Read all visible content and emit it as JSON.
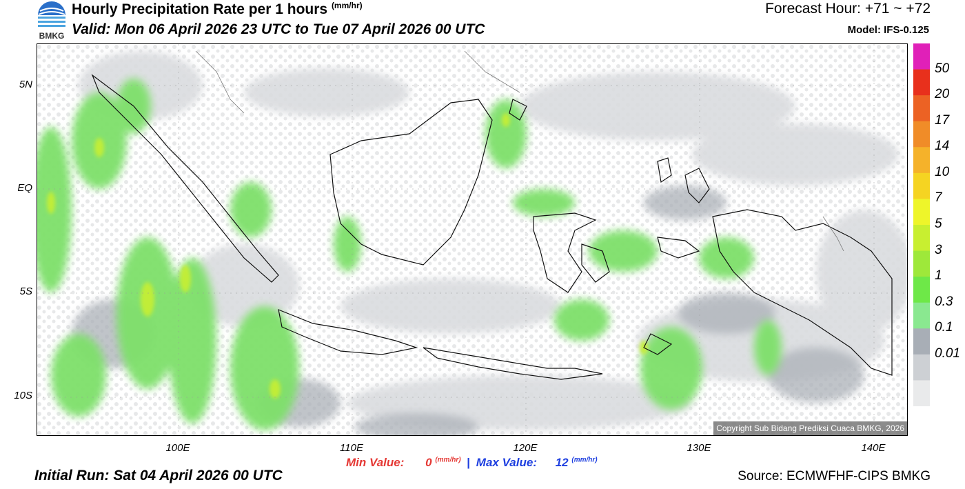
{
  "header": {
    "title": "Hourly Precipitation Rate per 1 hours",
    "title_unit": "(mm/hr)",
    "valid": "Valid: Mon 06 April 2026 23 UTC to Tue 07 April 2026 00 UTC",
    "forecast_hour": "Forecast Hour: +71 ~ +72",
    "model": "Model: IFS-0.125",
    "logo_text": "BMKG"
  },
  "axes": {
    "y_labels": [
      "5N",
      "EQ",
      "5S",
      "10S"
    ],
    "x_labels": [
      "100E",
      "110E",
      "120E",
      "130E",
      "140E"
    ]
  },
  "colorbar": {
    "labels": [
      "50",
      "20",
      "17",
      "14",
      "10",
      "7",
      "5",
      "3",
      "1",
      "0.3",
      "0.1",
      "0.01"
    ],
    "colors": [
      "#e020b8",
      "#e8301c",
      "#ec6224",
      "#f08c28",
      "#f5b22a",
      "#f5d422",
      "#eef52a",
      "#c8ef30",
      "#9ee83a",
      "#6ee848",
      "#8ae890",
      "#a8aeb6",
      "#cdd0d4",
      "#e9eaeb"
    ]
  },
  "footer": {
    "min_label": "Min Value:",
    "min_value": "0",
    "max_label": "Max Value:",
    "max_value": "12",
    "unit": "(mm/hr)",
    "initial_run": "Initial Run: Sat 04 April 2026 00 UTC",
    "source": "Source: ECMWFHF-CIPS BMKG",
    "copyright": "Copyright Sub Bidang Prediksi Cuaca BMKG, 2026"
  }
}
